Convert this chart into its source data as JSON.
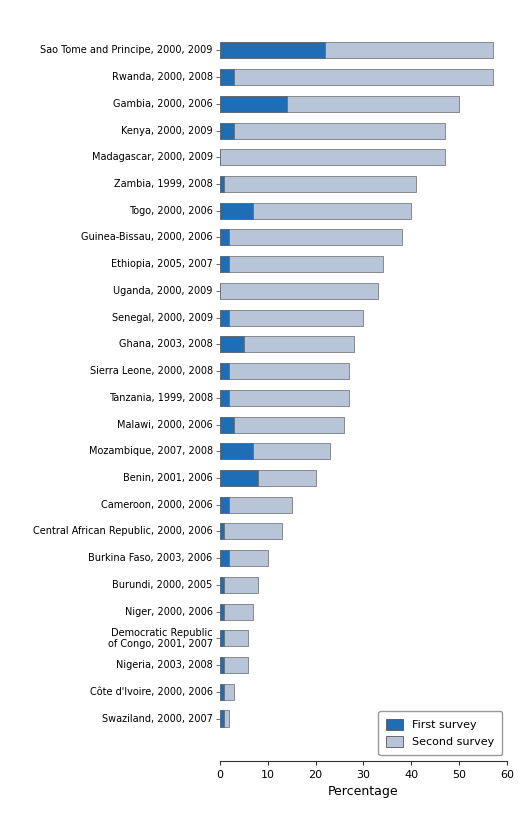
{
  "countries": [
    "Sao Tome and Principe, 2000, 2009",
    "Rwanda, 2000, 2008",
    "Gambia, 2000, 2006",
    "Kenya, 2000, 2009",
    "Madagascar, 2000, 2009",
    "Zambia, 1999, 2008",
    "Togo, 2000, 2006",
    "Guinea-Bissau, 2000, 2006",
    "Ethiopia, 2005, 2007",
    "Uganda, 2000, 2009",
    "Senegal, 2000, 2009",
    "Ghana, 2003, 2008",
    "Sierra Leone, 2000, 2008",
    "Tanzania, 1999, 2008",
    "Malawi, 2000, 2006",
    "Mozambique, 2007, 2008",
    "Benin, 2001, 2006",
    "Cameroon, 2000, 2006",
    "Central African Republic, 2000, 2006",
    "Burkina Faso, 2003, 2006",
    "Burundi, 2000, 2005",
    "Niger, 2000, 2006",
    "Democratic Republic\nof Congo, 2001, 2007",
    "Nigeria, 2003, 2008",
    "Côte d'Ivoire, 2000, 2006",
    "Swaziland, 2000, 2007"
  ],
  "first_survey": [
    22,
    3,
    14,
    3,
    0,
    1,
    7,
    2,
    2,
    0,
    2,
    5,
    2,
    2,
    3,
    7,
    8,
    2,
    1,
    2,
    1,
    1,
    1,
    1,
    1,
    1
  ],
  "second_survey": [
    57,
    57,
    50,
    47,
    47,
    41,
    40,
    38,
    34,
    33,
    30,
    28,
    27,
    27,
    26,
    23,
    20,
    15,
    13,
    10,
    8,
    7,
    6,
    6,
    3,
    2
  ],
  "first_color": "#1f6eb5",
  "second_color": "#b8c4d8",
  "xlabel": "Percentage",
  "xlim": [
    0,
    60
  ],
  "xticks": [
    0,
    10,
    20,
    30,
    40,
    50,
    60
  ],
  "legend_first": "First survey",
  "legend_second": "Second survey",
  "figsize": [
    5.23,
    8.18
  ],
  "dpi": 100
}
